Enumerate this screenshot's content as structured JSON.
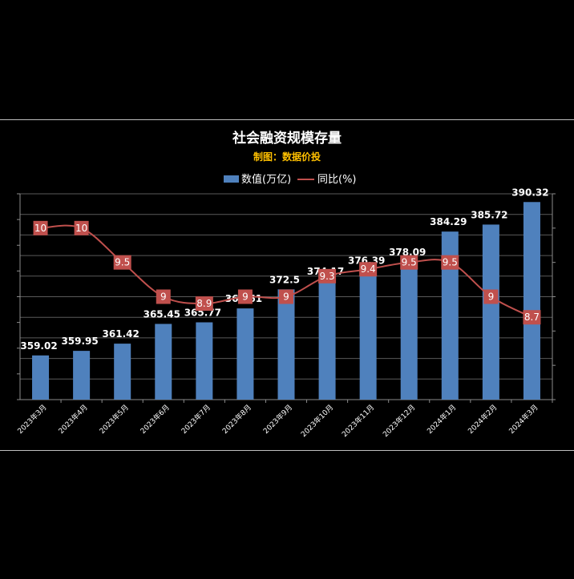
{
  "chart_data": {
    "type": "bar",
    "title": "社会融资规模存量",
    "subtitle": "制图：数据价投",
    "categories": [
      "2023年3月",
      "2023年4月",
      "2023年5月",
      "2023年6月",
      "2023年7月",
      "2023年8月",
      "2023年9月",
      "2023年10月",
      "2023年11月",
      "2023年12月",
      "2024年1月",
      "2024年2月",
      "2024年3月"
    ],
    "series": [
      {
        "name": "数值(万亿)",
        "type": "bar",
        "axis": "left",
        "color": "#4f81bd",
        "values": [
          359.02,
          359.95,
          361.42,
          365.45,
          365.77,
          368.61,
          372.5,
          374.17,
          376.39,
          378.09,
          384.29,
          385.72,
          390.32
        ]
      },
      {
        "name": "同比(%)",
        "type": "line",
        "axis": "right",
        "color": "#c0504d",
        "values": [
          10,
          10,
          9.5,
          9,
          8.9,
          9,
          9,
          9.3,
          9.4,
          9.5,
          9.5,
          9,
          8.7
        ]
      }
    ],
    "y_left_range": [
      350,
      392
    ],
    "y_right_range": [
      7.5,
      10.5
    ],
    "legend_position": "top",
    "grid": true
  }
}
